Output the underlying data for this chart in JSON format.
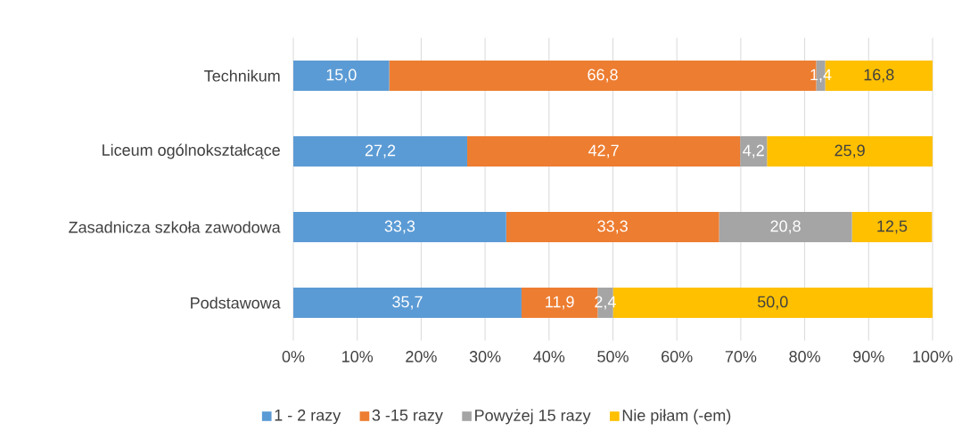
{
  "chart_data": {
    "type": "bar",
    "orientation": "horizontal",
    "stacked": true,
    "categories": [
      "Technikum",
      "Liceum ogólnokształcące",
      "Zasadnicza szkoła zawodowa",
      "Podstawowa"
    ],
    "series": [
      {
        "name": "1 - 2 razy",
        "color": "#5b9bd5",
        "values": [
          15.0,
          27.2,
          33.3,
          35.7
        ],
        "value_labels": [
          "15,0",
          "27,2",
          "33,3",
          "35,7"
        ]
      },
      {
        "name": "3 -15 razy",
        "color": "#ed7d31",
        "values": [
          66.8,
          42.7,
          33.3,
          11.9
        ],
        "value_labels": [
          "66,8",
          "42,7",
          "33,3",
          "11,9"
        ]
      },
      {
        "name": "Powyżej 15 razy",
        "color": "#a5a5a5",
        "values": [
          1.4,
          4.2,
          20.8,
          2.4
        ],
        "value_labels": [
          "1,4",
          "4,2",
          "20,8",
          "2,4"
        ]
      },
      {
        "name": "Nie piłam (-em)",
        "color": "#ffc000",
        "values": [
          16.8,
          25.9,
          12.5,
          50.0
        ],
        "value_labels": [
          "16,8",
          "25,9",
          "12,5",
          "50,0"
        ]
      }
    ],
    "xlim": [
      0,
      100
    ],
    "xticks": [
      {
        "value": 0,
        "label": "0%"
      },
      {
        "value": 10,
        "label": "10%"
      },
      {
        "value": 20,
        "label": "20%"
      },
      {
        "value": 30,
        "label": "30%"
      },
      {
        "value": 40,
        "label": "40%"
      },
      {
        "value": 50,
        "label": "50%"
      },
      {
        "value": 60,
        "label": "60%"
      },
      {
        "value": 70,
        "label": "70%"
      },
      {
        "value": 80,
        "label": "80%"
      },
      {
        "value": 90,
        "label": "90%"
      },
      {
        "value": 100,
        "label": "100%"
      }
    ],
    "grid": "x",
    "legend": "bottom"
  }
}
